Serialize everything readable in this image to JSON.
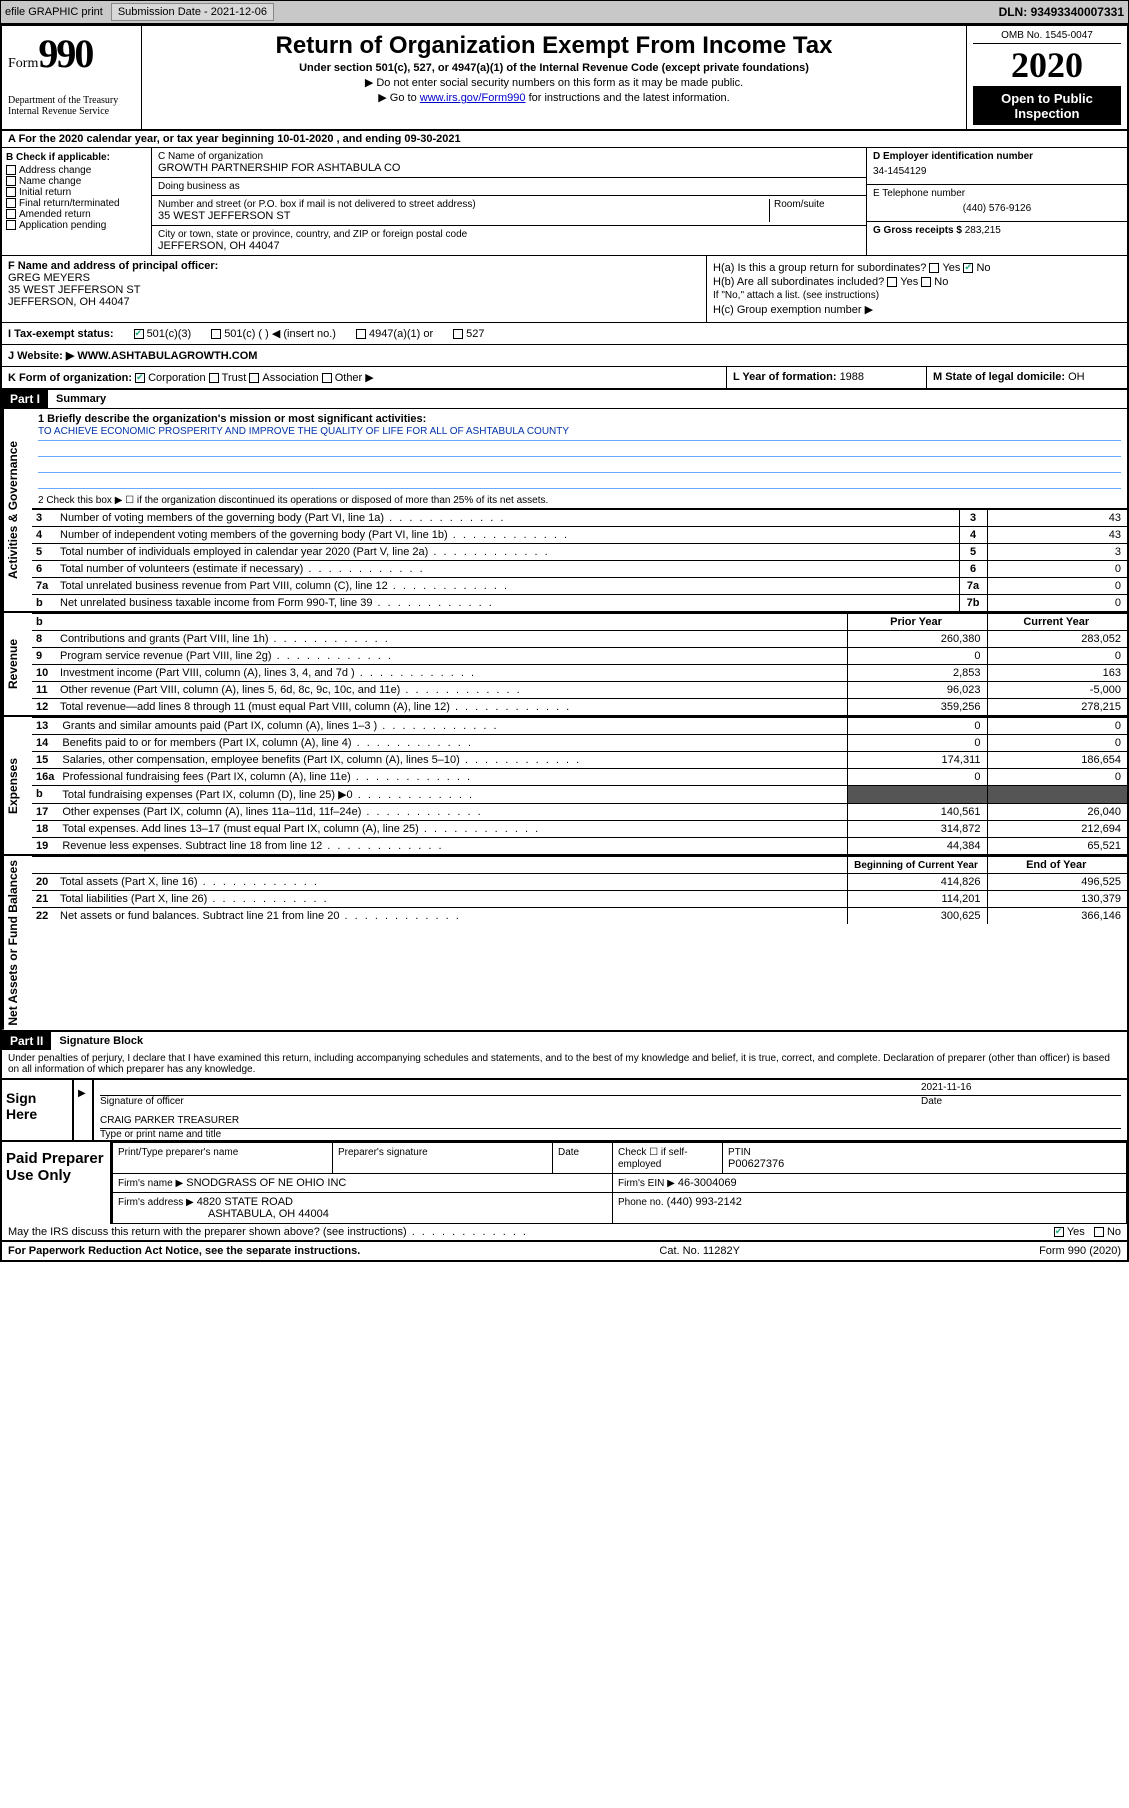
{
  "topbar": {
    "efile": "efile GRAPHIC print",
    "submission_label": "Submission Date - ",
    "submission_date": "2021-12-06",
    "dln_label": "DLN: ",
    "dln": "93493340007331"
  },
  "header": {
    "form_word": "Form",
    "form_num": "990",
    "dept": "Department of the Treasury",
    "irs": "Internal Revenue Service",
    "title": "Return of Organization Exempt From Income Tax",
    "subtitle": "Under section 501(c), 527, or 4947(a)(1) of the Internal Revenue Code (except private foundations)",
    "note1": "Do not enter social security numbers on this form as it may be made public.",
    "note2_pre": "Go to ",
    "note2_link": "www.irs.gov/Form990",
    "note2_post": " for instructions and the latest information.",
    "omb": "OMB No. 1545-0047",
    "year": "2020",
    "open": "Open to Public Inspection"
  },
  "rowA": "A  For the 2020 calendar year, or tax year beginning 10-01-2020     , and ending 09-30-2021",
  "colB": {
    "header": "B Check if applicable:",
    "items": [
      "Address change",
      "Name change",
      "Initial return",
      "Final return/terminated",
      "Amended return",
      "Application pending"
    ]
  },
  "colC": {
    "name_lbl": "C Name of organization",
    "name": "GROWTH PARTNERSHIP FOR ASHTABULA CO",
    "dba_lbl": "Doing business as",
    "dba": "",
    "street_lbl": "Number and street (or P.O. box if mail is not delivered to street address)",
    "room_lbl": "Room/suite",
    "street": "35 WEST JEFFERSON ST",
    "city_lbl": "City or town, state or province, country, and ZIP or foreign postal code",
    "city": "JEFFERSON, OH  44047"
  },
  "colD": {
    "ein_lbl": "D Employer identification number",
    "ein": "34-1454129",
    "phone_lbl": "E Telephone number",
    "phone": "(440) 576-9126",
    "gross_lbl": "G Gross receipts $ ",
    "gross": "283,215"
  },
  "sectionF": {
    "f_lbl": "F Name and address of principal officer:",
    "f_name": "GREG MEYERS",
    "f_addr1": "35 WEST JEFFERSON ST",
    "f_addr2": "JEFFERSON, OH  44047",
    "ha_lbl": "H(a)  Is this a group return for subordinates?",
    "ha_yes": "Yes",
    "ha_no": "No",
    "hb_lbl": "H(b)  Are all subordinates included?",
    "hb_note": "If \"No,\" attach a list. (see instructions)",
    "hc_lbl": "H(c)  Group exemption number ▶"
  },
  "rowI": {
    "lbl": "I  Tax-exempt status:",
    "opt1": "501(c)(3)",
    "opt2": "501(c) (   ) ◀ (insert no.)",
    "opt3": "4947(a)(1) or",
    "opt4": "527"
  },
  "rowJ": {
    "lbl": "J   Website: ▶",
    "val": "WWW.ASHTABULAGROWTH.COM"
  },
  "rowK": {
    "k_lbl": "K Form of organization:",
    "opts": [
      "Corporation",
      "Trust",
      "Association",
      "Other ▶"
    ],
    "l_lbl": "L Year of formation: ",
    "l_val": "1988",
    "m_lbl": "M State of legal domicile: ",
    "m_val": "OH"
  },
  "part1": {
    "bar": "Part I",
    "title": "Summary"
  },
  "sidelabels": {
    "ag": "Activities & Governance",
    "rev": "Revenue",
    "exp": "Expenses",
    "na": "Net Assets or Fund Balances"
  },
  "line1": {
    "lbl": "1   Briefly describe the organization's mission or most significant activities:",
    "text": "TO ACHIEVE ECONOMIC PROSPERITY AND IMPROVE THE QUALITY OF LIFE FOR ALL OF ASHTABULA COUNTY"
  },
  "line2": "2   Check this box ▶ ☐  if the organization discontinued its operations or disposed of more than 25% of its net assets.",
  "ag_lines": [
    {
      "n": "3",
      "lbl": "Number of voting members of the governing body (Part VI, line 1a)",
      "box": "3",
      "val": "43"
    },
    {
      "n": "4",
      "lbl": "Number of independent voting members of the governing body (Part VI, line 1b)",
      "box": "4",
      "val": "43"
    },
    {
      "n": "5",
      "lbl": "Total number of individuals employed in calendar year 2020 (Part V, line 2a)",
      "box": "5",
      "val": "3"
    },
    {
      "n": "6",
      "lbl": "Total number of volunteers (estimate if necessary)",
      "box": "6",
      "val": "0"
    },
    {
      "n": "7a",
      "lbl": "Total unrelated business revenue from Part VIII, column (C), line 12",
      "box": "7a",
      "val": "0"
    },
    {
      "n": "b",
      "lbl": "Net unrelated business taxable income from Form 990-T, line 39",
      "box": "7b",
      "val": "0"
    }
  ],
  "pycy_header": {
    "b": "b",
    "py": "Prior Year",
    "cy": "Current Year"
  },
  "rev_lines": [
    {
      "n": "8",
      "lbl": "Contributions and grants (Part VIII, line 1h)",
      "py": "260,380",
      "cy": "283,052"
    },
    {
      "n": "9",
      "lbl": "Program service revenue (Part VIII, line 2g)",
      "py": "0",
      "cy": "0"
    },
    {
      "n": "10",
      "lbl": "Investment income (Part VIII, column (A), lines 3, 4, and 7d )",
      "py": "2,853",
      "cy": "163"
    },
    {
      "n": "11",
      "lbl": "Other revenue (Part VIII, column (A), lines 5, 6d, 8c, 9c, 10c, and 11e)",
      "py": "96,023",
      "cy": "-5,000"
    },
    {
      "n": "12",
      "lbl": "Total revenue—add lines 8 through 11 (must equal Part VIII, column (A), line 12)",
      "py": "359,256",
      "cy": "278,215"
    }
  ],
  "exp_lines": [
    {
      "n": "13",
      "lbl": "Grants and similar amounts paid (Part IX, column (A), lines 1–3 )",
      "py": "0",
      "cy": "0"
    },
    {
      "n": "14",
      "lbl": "Benefits paid to or for members (Part IX, column (A), line 4)",
      "py": "0",
      "cy": "0"
    },
    {
      "n": "15",
      "lbl": "Salaries, other compensation, employee benefits (Part IX, column (A), lines 5–10)",
      "py": "174,311",
      "cy": "186,654"
    },
    {
      "n": "16a",
      "lbl": "Professional fundraising fees (Part IX, column (A), line 11e)",
      "py": "0",
      "cy": "0"
    },
    {
      "n": "b",
      "lbl": "Total fundraising expenses (Part IX, column (D), line 25) ▶0",
      "py": "",
      "cy": "",
      "shade": true
    },
    {
      "n": "17",
      "lbl": "Other expenses (Part IX, column (A), lines 11a–11d, 11f–24e)",
      "py": "140,561",
      "cy": "26,040"
    },
    {
      "n": "18",
      "lbl": "Total expenses. Add lines 13–17 (must equal Part IX, column (A), line 25)",
      "py": "314,872",
      "cy": "212,694"
    },
    {
      "n": "19",
      "lbl": "Revenue less expenses. Subtract line 18 from line 12",
      "py": "44,384",
      "cy": "65,521"
    }
  ],
  "na_header": {
    "py": "Beginning of Current Year",
    "cy": "End of Year"
  },
  "na_lines": [
    {
      "n": "20",
      "lbl": "Total assets (Part X, line 16)",
      "py": "414,826",
      "cy": "496,525"
    },
    {
      "n": "21",
      "lbl": "Total liabilities (Part X, line 26)",
      "py": "114,201",
      "cy": "130,379"
    },
    {
      "n": "22",
      "lbl": "Net assets or fund balances. Subtract line 21 from line 20",
      "py": "300,625",
      "cy": "366,146"
    }
  ],
  "part2": {
    "bar": "Part II",
    "title": "Signature Block"
  },
  "perjury": "Under penalties of perjury, I declare that I have examined this return, including accompanying schedules and statements, and to the best of my knowledge and belief, it is true, correct, and complete. Declaration of preparer (other than officer) is based on all information of which preparer has any knowledge.",
  "sign": {
    "label": "Sign Here",
    "sig_lbl": "Signature of officer",
    "date_lbl": "Date",
    "date": "2021-11-16",
    "name": "CRAIG PARKER  TREASURER",
    "name_lbl": "Type or print name and title"
  },
  "paid": {
    "label": "Paid Preparer Use Only",
    "h1": "Print/Type preparer's name",
    "h2": "Preparer's signature",
    "h3": "Date",
    "chk_lbl": "Check ☐ if self-employed",
    "ptin_lbl": "PTIN",
    "ptin": "P00627376",
    "firm_lbl": "Firm's name   ▶",
    "firm": "SNODGRASS OF NE OHIO INC",
    "ein_lbl": "Firm's EIN ▶",
    "ein": "46-3004069",
    "addr_lbl": "Firm's address ▶",
    "addr1": "4820 STATE ROAD",
    "addr2": "ASHTABULA, OH  44004",
    "phone_lbl": "Phone no.",
    "phone": "(440) 993-2142"
  },
  "discuss": {
    "lbl": "May the IRS discuss this return with the preparer shown above? (see instructions)",
    "yes": "Yes",
    "no": "No"
  },
  "footer": {
    "left": "For Paperwork Reduction Act Notice, see the separate instructions.",
    "mid": "Cat. No. 11282Y",
    "right": "Form 990 (2020)"
  }
}
